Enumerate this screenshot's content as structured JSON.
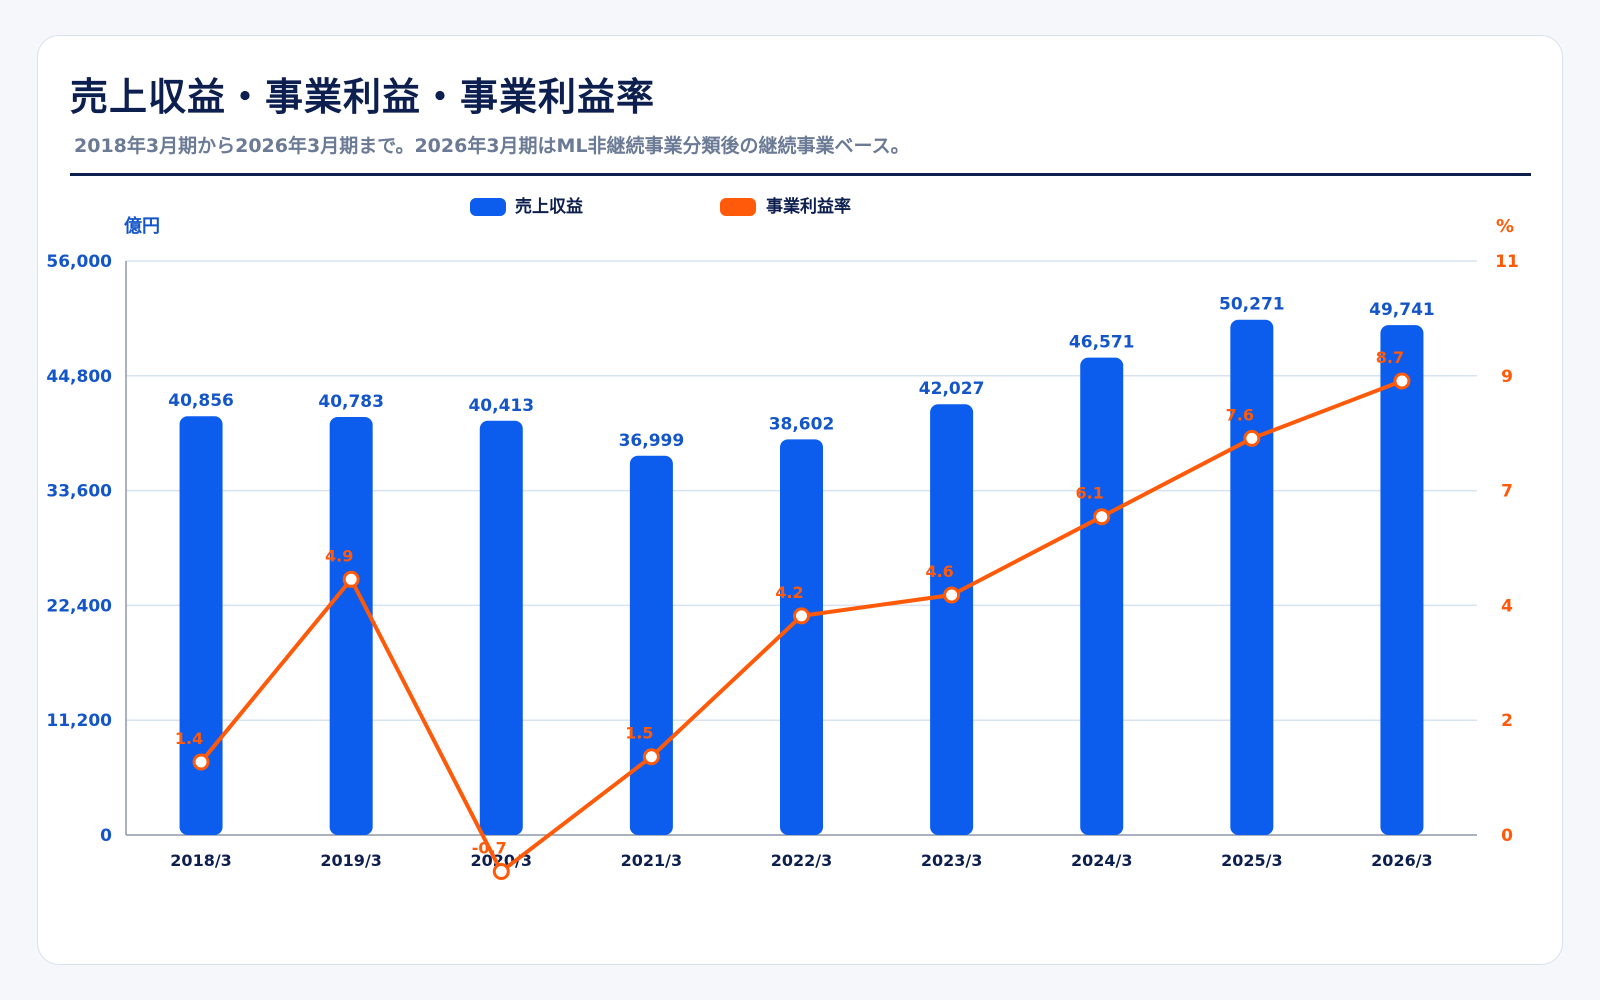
{
  "page": {
    "title": "売上収益・事業利益・事業利益率",
    "subtitle": "2018年3月期から2026年3月期まで。2026年3月期はML非継続事業分類後の継続事業ベース。"
  },
  "colors": {
    "bar": "#0c5ced",
    "line": "#ff5a0a",
    "left_axis_text": "#1456c8",
    "right_axis_text": "#ff5a0a",
    "grid": "#d8e3f2",
    "title": "#0d1f4f"
  },
  "chart_data": {
    "type": "bar+line",
    "categories": [
      "2018/3",
      "2019/3",
      "2020/3",
      "2021/3",
      "2022/3",
      "2023/3",
      "2024/3",
      "2025/3",
      "2026/3"
    ],
    "series": [
      {
        "name": "売上収益",
        "type": "bar",
        "axis": "left",
        "values": [
          40856,
          40783,
          40413,
          36999,
          38602,
          42027,
          46571,
          50271,
          49741
        ],
        "labels": [
          "40,856",
          "40,783",
          "40,413",
          "36,999",
          "38,602",
          "42,027",
          "46,571",
          "50,271",
          "49,741"
        ]
      },
      {
        "name": "事業利益率",
        "type": "line",
        "axis": "right",
        "values": [
          1.4,
          4.9,
          -0.7,
          1.5,
          4.2,
          4.6,
          6.1,
          7.6,
          8.7
        ],
        "labels": [
          "1.4",
          "4.9",
          "-0.7",
          "1.5",
          "4.2",
          "4.6",
          "6.1",
          "7.6",
          "8.7"
        ]
      }
    ],
    "left_axis": {
      "unit": "億円",
      "ylim": [
        0,
        56000
      ],
      "ticks": [
        "0",
        "11,200",
        "22,400",
        "33,600",
        "44,800",
        "56,000"
      ]
    },
    "right_axis": {
      "unit": "%",
      "ylim": [
        0,
        11
      ],
      "ticks": [
        "0",
        "2",
        "4",
        "7",
        "9",
        "11"
      ]
    },
    "legend_position": "top-center",
    "grid": true
  }
}
